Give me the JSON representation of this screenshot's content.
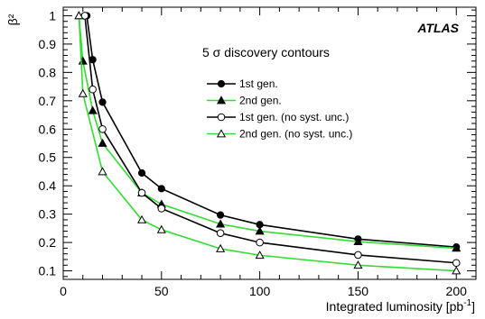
{
  "chart_data": {
    "type": "line",
    "label": "ATLAS",
    "subtitle": "5 σ discovery contours",
    "xlabel": "Integrated luminosity [pb",
    "xlabel_sup": "-1",
    "xlabel_end": "]",
    "ylabel": "β²",
    "xlim": [
      0,
      210
    ],
    "ylim": [
      0.07,
      1.03
    ],
    "xticks": [
      0,
      50,
      100,
      150,
      200
    ],
    "yticks": [
      0.1,
      0.2,
      0.3,
      0.4,
      0.5,
      0.6,
      0.7,
      0.8,
      0.9,
      1
    ],
    "ytick_labels": [
      "0.1",
      "0.2",
      "0.3",
      "0.4",
      "0.5",
      "0.6",
      "0.7",
      "0.8",
      "0.9",
      "1"
    ],
    "legend_position": "top-right",
    "series": [
      {
        "name": "1st gen.",
        "color": "#000000",
        "marker": "filled-circle",
        "x": [
          12,
          15,
          20,
          40,
          50,
          80,
          100,
          150,
          200
        ],
        "y": [
          1.0,
          0.845,
          0.695,
          0.445,
          0.39,
          0.297,
          0.263,
          0.212,
          0.184
        ]
      },
      {
        "name": "2nd gen.",
        "color": "#33dd33",
        "marker": "filled-triangle",
        "x": [
          8,
          10,
          15,
          20,
          40,
          50,
          80,
          100,
          150,
          200
        ],
        "y": [
          1.0,
          0.84,
          0.665,
          0.55,
          0.375,
          0.335,
          0.265,
          0.24,
          0.203,
          0.18
        ]
      },
      {
        "name": "1st gen. (no syst. unc.)",
        "color": "#000000",
        "marker": "open-circle",
        "x": [
          11,
          15,
          20,
          40,
          50,
          80,
          100,
          150,
          200
        ],
        "y": [
          1.0,
          0.74,
          0.6,
          0.375,
          0.32,
          0.233,
          0.2,
          0.156,
          0.128
        ]
      },
      {
        "name": "2nd gen. (no syst. unc.)",
        "color": "#33dd33",
        "marker": "open-triangle",
        "x": [
          8,
          10,
          20,
          40,
          50,
          80,
          100,
          150,
          200
        ],
        "y": [
          1.0,
          0.725,
          0.45,
          0.28,
          0.245,
          0.178,
          0.155,
          0.12,
          0.1
        ]
      }
    ]
  }
}
